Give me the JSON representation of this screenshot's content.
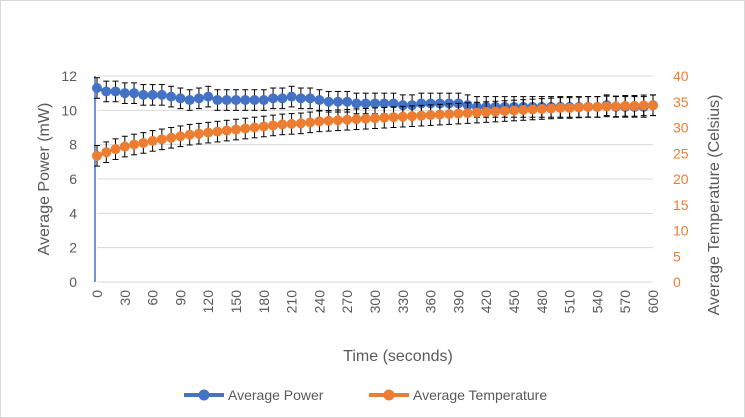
{
  "chart_data": {
    "type": "line",
    "title": "",
    "xlabel": "Time (seconds)",
    "ylabel": "Average Power (mW)",
    "y2label": "Average Temperature (Celsius)",
    "x_ticks": [
      0,
      30,
      60,
      90,
      120,
      150,
      180,
      210,
      240,
      270,
      300,
      330,
      360,
      390,
      420,
      450,
      480,
      510,
      540,
      570,
      600
    ],
    "xlim": [
      0,
      600
    ],
    "ylim": [
      0,
      12
    ],
    "y_ticks": [
      0,
      2,
      4,
      6,
      8,
      10,
      12
    ],
    "y2lim": [
      0,
      40
    ],
    "y2_ticks": [
      0,
      5,
      10,
      15,
      20,
      25,
      30,
      35,
      40
    ],
    "grid": "horizontal",
    "legend": "bottom",
    "colors": {
      "power": "#4472C4",
      "temperature": "#ED7D31",
      "error_bar": "#000000",
      "grid": "#d9d9d9",
      "tick_text": "#595959"
    },
    "x": [
      0,
      10,
      20,
      30,
      40,
      50,
      60,
      70,
      80,
      90,
      100,
      110,
      120,
      130,
      140,
      150,
      160,
      170,
      180,
      190,
      200,
      210,
      220,
      230,
      240,
      250,
      260,
      270,
      280,
      290,
      300,
      310,
      320,
      330,
      340,
      350,
      360,
      370,
      380,
      390,
      400,
      410,
      420,
      430,
      440,
      450,
      460,
      470,
      480,
      490,
      500,
      510,
      520,
      530,
      540,
      550,
      560,
      570,
      580,
      590,
      600
    ],
    "series": [
      {
        "name": "Average Power",
        "axis": "left",
        "values": [
          11.3,
          11.1,
          11.1,
          11.0,
          11.0,
          10.9,
          10.9,
          10.9,
          10.8,
          10.7,
          10.6,
          10.7,
          10.8,
          10.6,
          10.6,
          10.6,
          10.6,
          10.6,
          10.6,
          10.7,
          10.7,
          10.8,
          10.7,
          10.7,
          10.6,
          10.5,
          10.5,
          10.5,
          10.4,
          10.4,
          10.4,
          10.4,
          10.4,
          10.3,
          10.3,
          10.4,
          10.4,
          10.4,
          10.4,
          10.4,
          10.3,
          10.2,
          10.2,
          10.2,
          10.2,
          10.2,
          10.2,
          10.2,
          10.2,
          10.2,
          10.2,
          10.2,
          10.2,
          10.2,
          10.2,
          10.3,
          10.2,
          10.2,
          10.2,
          10.2,
          10.3
        ],
        "error": 0.6
      },
      {
        "name": "Average Temperature",
        "axis": "right",
        "values": [
          24.5,
          25.2,
          25.8,
          26.3,
          26.7,
          27.0,
          27.4,
          27.7,
          28.0,
          28.3,
          28.6,
          28.8,
          29.0,
          29.2,
          29.4,
          29.6,
          29.8,
          30.0,
          30.2,
          30.4,
          30.6,
          30.7,
          30.8,
          31.0,
          31.2,
          31.3,
          31.4,
          31.5,
          31.6,
          31.7,
          31.8,
          31.9,
          32.0,
          32.1,
          32.2,
          32.3,
          32.4,
          32.5,
          32.6,
          32.7,
          32.8,
          32.9,
          33.0,
          33.1,
          33.2,
          33.3,
          33.4,
          33.5,
          33.6,
          33.7,
          33.8,
          33.8,
          33.9,
          34.0,
          34.0,
          34.1,
          34.1,
          34.2,
          34.2,
          34.3,
          34.3
        ],
        "error": 2.0
      }
    ]
  }
}
